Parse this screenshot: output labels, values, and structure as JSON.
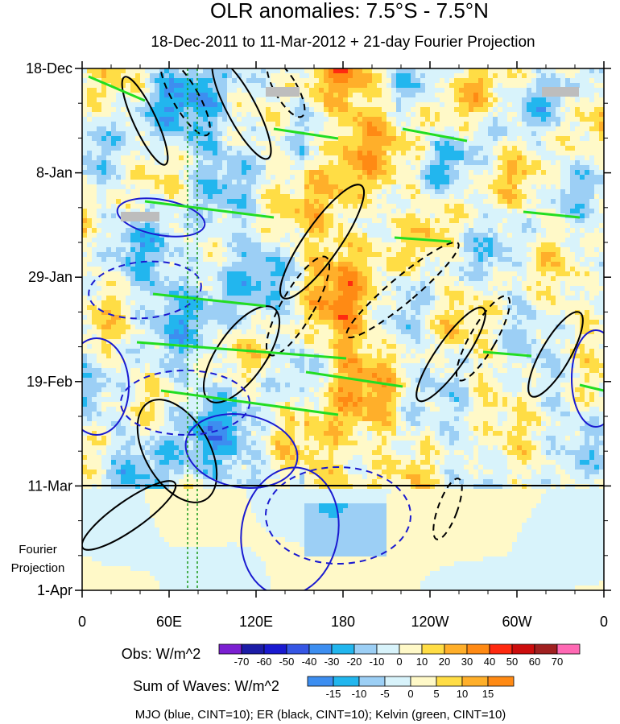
{
  "chart_data": {
    "type": "heatmap",
    "title": "OLR anomalies: 7.5°S - 7.5°N",
    "subtitle": "18-Dec-2011 to 11-Mar-2012 + 21-day Fourier Projection",
    "x_ticks": [
      "0",
      "60E",
      "120E",
      "180",
      "120W",
      "60W",
      "0"
    ],
    "y_ticks": [
      "18-Dec",
      "8-Jan",
      "29-Jan",
      "19-Feb",
      "11-Mar",
      "1-Apr"
    ],
    "y_annotation": [
      "Fourier",
      "Projection"
    ],
    "forecast_start_line": "11-Mar",
    "observed_colorbar": {
      "label": "Obs: W/m^2",
      "levels": [
        "-70",
        "-60",
        "-50",
        "-40",
        "-30",
        "-20",
        "-10",
        "0",
        "10",
        "20",
        "30",
        "40",
        "50",
        "60",
        "70"
      ],
      "colors": [
        "#7b1fd1",
        "#1c1ca6",
        "#1a1ad0",
        "#3656e4",
        "#3d8ef0",
        "#22b6ee",
        "#9ccff5",
        "#d8f3fb",
        "#fff9c8",
        "#ffdd45",
        "#ffaf2a",
        "#ff8a14",
        "#ff2a10",
        "#cc0d0d",
        "#a02020",
        "#ff69b4"
      ]
    },
    "waves_colorbar": {
      "label": "Sum of Waves: W/m^2",
      "levels": [
        "-15",
        "-10",
        "-5",
        "0",
        "5",
        "10",
        "15"
      ],
      "colors": [
        "#3d8ef0",
        "#22b6ee",
        "#9ccff5",
        "#d8f3fb",
        "#fff9c8",
        "#ffdd45",
        "#ffaf2a",
        "#ff8a14"
      ]
    },
    "contour_legend": "MJO (blue, CINT=10); ER (black, CINT=10); Kelvin (green, CINT=10)"
  }
}
